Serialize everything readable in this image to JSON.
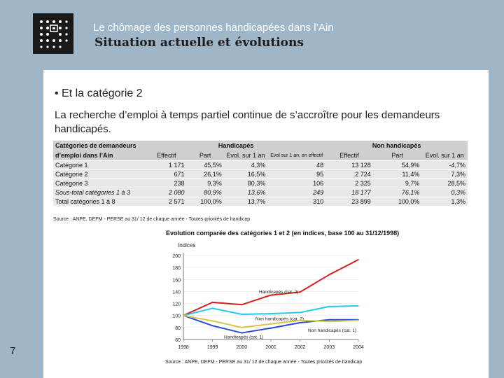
{
  "header": {
    "title_small": "Le chômage des personnes handicapées dans l’Ain",
    "title_big": "Situation actuelle et évolutions"
  },
  "content": {
    "bullet": "• Et la catégorie 2",
    "paragraph": "La recherche d’emploi à temps partiel continue de s’accroître pour les demandeurs handicapés."
  },
  "table": {
    "title_line1": "Catégories de demandeurs",
    "title_line2": "d’emploi dans l’Ain",
    "group_h": "Handicapés",
    "group_nh": "Non handicapés",
    "sub_headers_h": [
      "Effectif",
      "Part",
      "Evol. sur 1 an",
      "Evol sur 1 an, en effectif"
    ],
    "sub_headers_nh": [
      "Effectif",
      "Part",
      "Evol. sur 1 an"
    ],
    "rows": [
      {
        "label": "Catégorie 1",
        "h": [
          "1 171",
          "45,5%",
          "4,3%",
          "48"
        ],
        "nh": [
          "13 128",
          "54,9%",
          "-4,7%"
        ]
      },
      {
        "label": "Catégorie 2",
        "h": [
          "671",
          "26,1%",
          "16,5%",
          "95"
        ],
        "nh": [
          "2 724",
          "11,4%",
          "7,3%"
        ]
      },
      {
        "label": "Catégorie 3",
        "h": [
          "238",
          "9,3%",
          "80,3%",
          "106"
        ],
        "nh": [
          "2 325",
          "9,7%",
          "28,5%"
        ]
      },
      {
        "label": "Sous-total catégories 1 à 3",
        "h": [
          "2 080",
          "80,9%",
          "13,6%",
          "249"
        ],
        "nh": [
          "18 177",
          "76,1%",
          "0,3%"
        ]
      },
      {
        "label": "Total catégories 1 à 8",
        "h": [
          "2 571",
          "100,0%",
          "13,7%",
          "310"
        ],
        "nh": [
          "23 899",
          "100,0%",
          "1,3%"
        ]
      }
    ],
    "source": "Source : ANPE, DEFM - PERSE au 31/ 12 de chaque année - Toutes priorités de handicap"
  },
  "chart_data": {
    "type": "line",
    "title": "Evolution comparée des catégories 1 et 2 (en indices, base 100 au 31/12/1998)",
    "ylabel": "Indices",
    "x": [
      "1998",
      "1999",
      "2000",
      "2001",
      "2002",
      "2003",
      "2004"
    ],
    "ylim": [
      60,
      200
    ],
    "yticks": [
      60,
      80,
      100,
      120,
      140,
      160,
      180,
      200
    ],
    "series": [
      {
        "name": "Handicapés (cat. 2)",
        "color": "#d42020",
        "values": [
          100,
          122,
          118,
          134,
          139,
          168,
          193
        ]
      },
      {
        "name": "Non handicapés (cat. 2)",
        "color": "#29c6e8",
        "values": [
          100,
          112,
          102,
          103,
          105,
          115,
          116
        ]
      },
      {
        "name": "Handicapés (cat. 1)",
        "color": "#2b4bd6",
        "values": [
          100,
          83,
          71,
          79,
          88,
          93,
          93
        ]
      },
      {
        "name": "Non handicapés (cat. 1)",
        "color": "#d9c44a",
        "values": [
          100,
          91,
          80,
          86,
          92,
          90,
          92
        ]
      }
    ],
    "source": "Source : ANPE, DEFM - PERSE au 31/ 12 de chaque année - Toutes priorités de handicap"
  },
  "page_number": "7"
}
